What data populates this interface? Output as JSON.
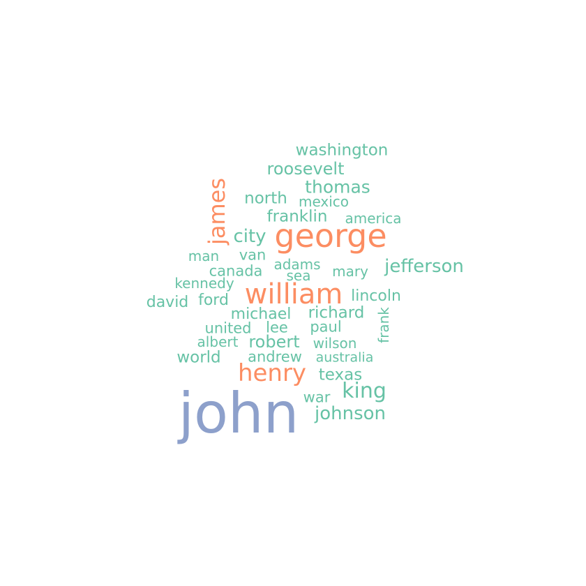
{
  "colors": {
    "tier1": "#8da0cb",
    "tier2": "#fc8d62",
    "tier3": "#66c2a5"
  },
  "words": [
    {
      "id": "john",
      "text": "john",
      "tier": 1
    },
    {
      "id": "george",
      "text": "george",
      "tier": 2
    },
    {
      "id": "william",
      "text": "william",
      "tier": 2
    },
    {
      "id": "henry",
      "text": "henry",
      "tier": 2
    },
    {
      "id": "james",
      "text": "james",
      "tier": 2
    },
    {
      "id": "washington",
      "text": "washington",
      "tier": 3
    },
    {
      "id": "roosevelt",
      "text": "roosevelt",
      "tier": 3
    },
    {
      "id": "thomas",
      "text": "thomas",
      "tier": 3
    },
    {
      "id": "north",
      "text": "north",
      "tier": 3
    },
    {
      "id": "mexico",
      "text": "mexico",
      "tier": 3
    },
    {
      "id": "franklin",
      "text": "franklin",
      "tier": 3
    },
    {
      "id": "america",
      "text": "america",
      "tier": 3
    },
    {
      "id": "city",
      "text": "city",
      "tier": 3
    },
    {
      "id": "man",
      "text": "man",
      "tier": 3
    },
    {
      "id": "van",
      "text": "van",
      "tier": 3
    },
    {
      "id": "adams",
      "text": "adams",
      "tier": 3
    },
    {
      "id": "canada",
      "text": "canada",
      "tier": 3
    },
    {
      "id": "mary",
      "text": "mary",
      "tier": 3
    },
    {
      "id": "jefferson",
      "text": "jefferson",
      "tier": 3
    },
    {
      "id": "sea",
      "text": "sea",
      "tier": 3
    },
    {
      "id": "kennedy",
      "text": "kennedy",
      "tier": 3
    },
    {
      "id": "lincoln",
      "text": "lincoln",
      "tier": 3
    },
    {
      "id": "david",
      "text": "david",
      "tier": 3
    },
    {
      "id": "ford",
      "text": "ford",
      "tier": 3
    },
    {
      "id": "michael",
      "text": "michael",
      "tier": 3
    },
    {
      "id": "richard",
      "text": "richard",
      "tier": 3
    },
    {
      "id": "frank",
      "text": "frank",
      "tier": 3
    },
    {
      "id": "united",
      "text": "united",
      "tier": 3
    },
    {
      "id": "lee",
      "text": "lee",
      "tier": 3
    },
    {
      "id": "paul",
      "text": "paul",
      "tier": 3
    },
    {
      "id": "albert",
      "text": "albert",
      "tier": 3
    },
    {
      "id": "robert",
      "text": "robert",
      "tier": 3
    },
    {
      "id": "wilson",
      "text": "wilson",
      "tier": 3
    },
    {
      "id": "world",
      "text": "world",
      "tier": 3
    },
    {
      "id": "andrew",
      "text": "andrew",
      "tier": 3
    },
    {
      "id": "australia",
      "text": "australia",
      "tier": 3
    },
    {
      "id": "texas",
      "text": "texas",
      "tier": 3
    },
    {
      "id": "king",
      "text": "king",
      "tier": 3
    },
    {
      "id": "war",
      "text": "war",
      "tier": 3
    },
    {
      "id": "johnson",
      "text": "johnson",
      "tier": 3
    }
  ]
}
